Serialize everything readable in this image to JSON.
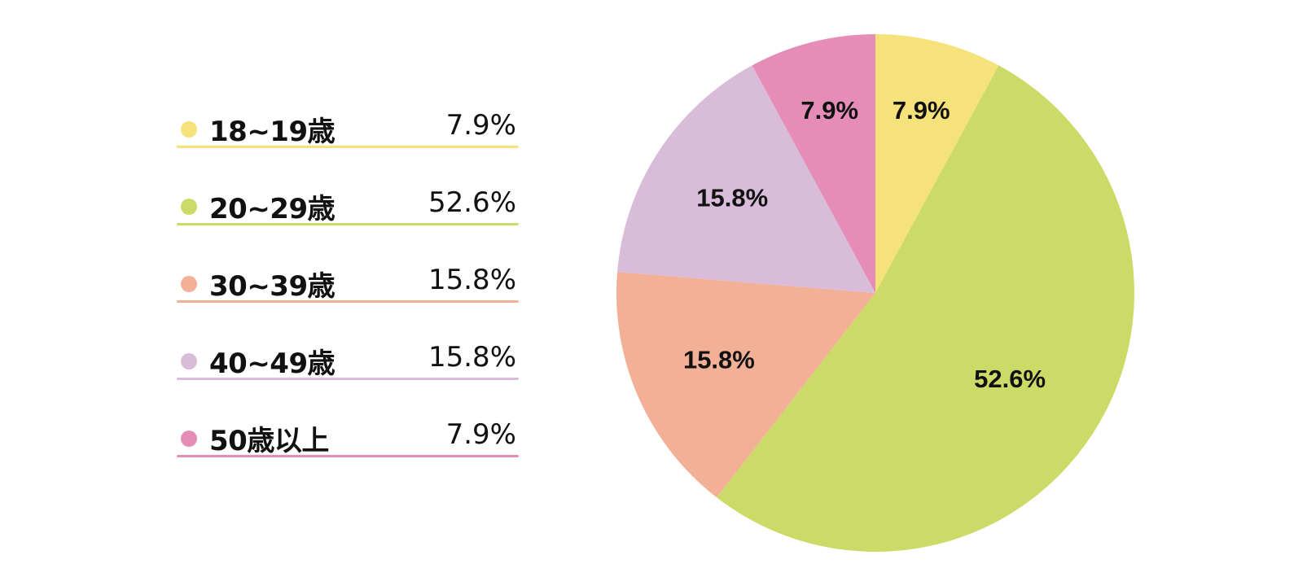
{
  "chart_data": {
    "type": "pie",
    "categories": [
      "18~19歳",
      "20~29歳",
      "30~39歳",
      "40~49歳",
      "50歳以上"
    ],
    "values": [
      7.9,
      52.6,
      15.8,
      15.8,
      7.9
    ],
    "labels": [
      "7.9%",
      "52.6%",
      "15.8%",
      "15.8%",
      "7.9%"
    ],
    "colors": [
      "#f5e27b",
      "#ccdb67",
      "#f2b096",
      "#d8bcd9",
      "#e58db6"
    ],
    "start_angle": "12 o'clock",
    "direction": "clockwise",
    "legend": "left"
  }
}
